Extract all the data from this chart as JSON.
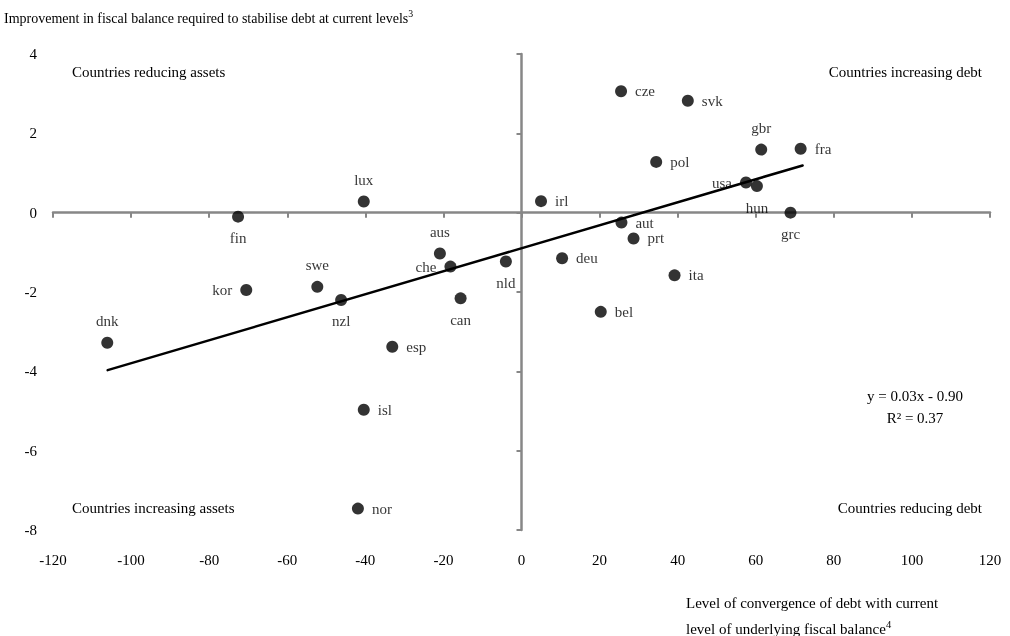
{
  "chart_data": {
    "type": "scatter",
    "ylabel": "Improvement in fiscal balance required to stabilise debt at current levels$^{3}$",
    "xlabel": "Level of convergence of debt with current level of underlying fiscal balance$^{4}$",
    "annotations": [
      "Countries reducing assets",
      "Countries increasing debt",
      "Countries increasing assets",
      "Countries reducing debt",
      "y = 0.03x - 0.90",
      "R² = 0.37"
    ],
    "xlim": [
      -120,
      120
    ],
    "xticks": [
      -120,
      -100,
      -80,
      -60,
      -40,
      -20,
      0,
      20,
      40,
      60,
      80,
      100,
      120
    ],
    "ylim": [
      -8,
      4
    ],
    "yticks": [
      -8,
      -6,
      -4,
      -2,
      0,
      2,
      4
    ],
    "marker": "circle",
    "series": [
      {
        "color": "#000000",
        "x": [
          -106.1,
          -72.6,
          -70.5,
          -52.3,
          -46.2,
          -40.4,
          -33.1,
          -40.4,
          -41.9,
          -20.9,
          -18.2,
          -15.6,
          -4.0,
          5.0,
          10.4,
          20.3,
          25.5,
          25.6,
          28.7,
          34.5,
          39.2,
          42.6,
          57.5,
          60.3,
          61.4,
          68.9,
          71.5
        ],
        "values": [
          -3.28,
          -0.1,
          -1.95,
          -1.87,
          -2.2,
          0.28,
          -3.38,
          -4.97,
          -7.46,
          -1.03,
          -1.36,
          -2.16,
          -1.23,
          0.29,
          -1.15,
          -2.5,
          3.06,
          -0.25,
          -0.65,
          1.28,
          -1.58,
          2.82,
          0.76,
          0.67,
          1.59,
          0,
          1.61
        ],
        "value_labels": [
          "dnk",
          "fin",
          "kor",
          "swe",
          "nzl",
          "lux",
          "esp",
          "isl",
          "nor",
          "aus",
          "che",
          "can",
          "nld",
          "irl",
          "deu",
          "bel",
          "cze",
          "aut",
          "prt",
          "pol",
          "ita",
          "svk",
          "usa",
          "hun",
          "gbr",
          "grc",
          "fra"
        ]
      },
      {
        "type": "line",
        "color": "#000000",
        "marker": "none",
        "x": [
          -106,
          72
        ],
        "values": [
          -3.97,
          1.19
        ]
      }
    ]
  }
}
